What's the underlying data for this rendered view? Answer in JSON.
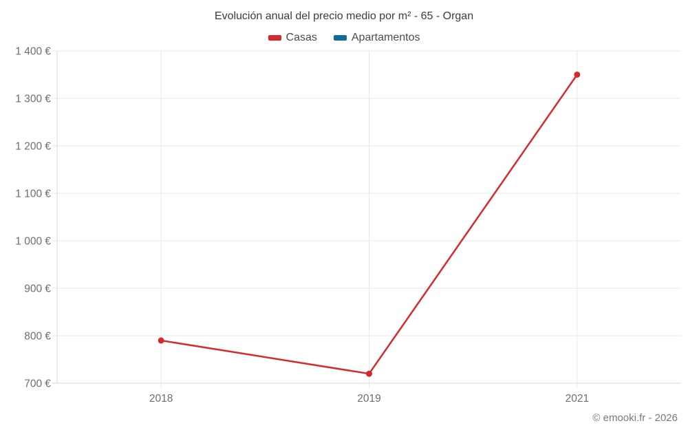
{
  "page": {
    "title": "Evolución anual del precio medio por m² - 65 - Organ",
    "footer": "© emooki.fr - 2026"
  },
  "legend": {
    "items": [
      {
        "label": "Casas",
        "color": "#d7282d"
      },
      {
        "label": "Apartamentos",
        "color": "#14699d"
      }
    ]
  },
  "chart_data": {
    "type": "line",
    "title": "Evolución anual del precio medio por m² - 65 - Organ",
    "categories": [
      "2018",
      "2019",
      "2021"
    ],
    "series": [
      {
        "name": "Casas",
        "color": "#d7282d",
        "values": [
          790,
          720,
          1350
        ]
      },
      {
        "name": "Apartamentos",
        "color": "#14699d",
        "values": []
      }
    ],
    "ylim": [
      700,
      1400
    ],
    "ytick_step": 100,
    "ytick_suffix": " €",
    "xlabel": "",
    "ylabel": "",
    "grid": true,
    "legend_position": "top"
  },
  "colors": {
    "background": "#ffffff",
    "title_text": "#3c3c3c",
    "legend_text": "#4b4b4b",
    "tick_text": "#6e6e6e",
    "grid_line": "#e9e9e9",
    "axis_line": "#d8d8d8",
    "footer_text": "#7a7a7a"
  }
}
